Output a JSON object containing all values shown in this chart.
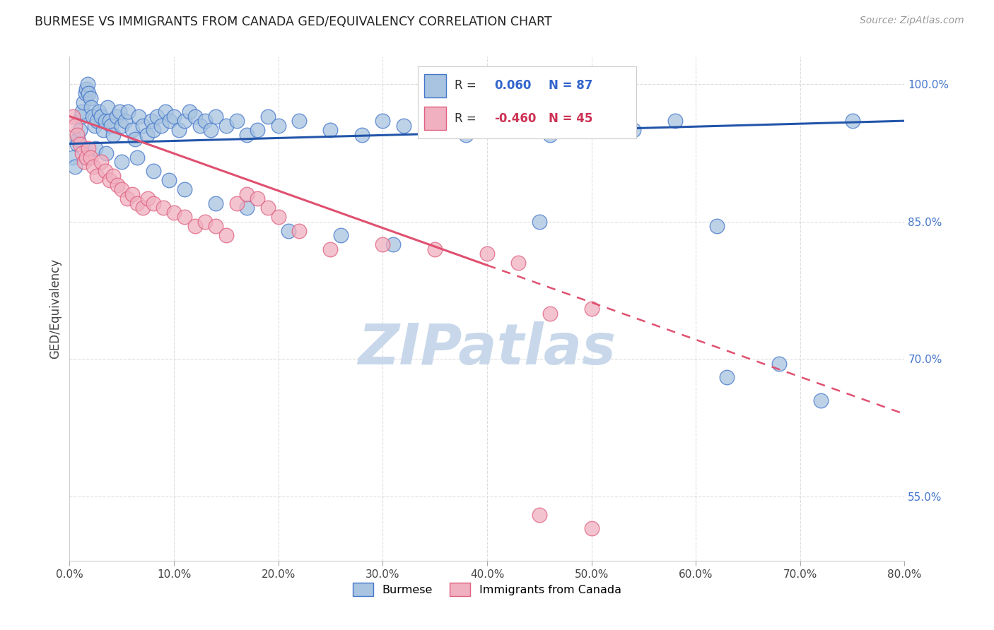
{
  "title": "BURMESE VS IMMIGRANTS FROM CANADA GED/EQUIVALENCY CORRELATION CHART",
  "source": "Source: ZipAtlas.com",
  "xlabel_ticks": [
    0.0,
    10.0,
    20.0,
    30.0,
    40.0,
    50.0,
    60.0,
    70.0,
    80.0
  ],
  "ylabel_right_ticks": [
    55.0,
    70.0,
    85.0,
    100.0
  ],
  "ylabel_label": "GED/Equivalency",
  "xlim": [
    0.0,
    80.0
  ],
  "ylim": [
    48.0,
    103.0
  ],
  "blue_R": 0.06,
  "blue_N": 87,
  "pink_R": -0.46,
  "pink_N": 45,
  "blue_color": "#a8c4e0",
  "pink_color": "#f0b0c0",
  "blue_edge_color": "#4477cc",
  "pink_edge_color": "#e06080",
  "blue_line_color": "#2255aa",
  "pink_line_color": "#e05070",
  "legend_blue_label": "Burmese",
  "legend_pink_label": "Immigrants from Canada",
  "blue_line_y0": 93.5,
  "blue_line_y1": 96.0,
  "pink_line_y0": 96.5,
  "pink_line_y1": 64.0,
  "pink_solid_end_x": 40.0,
  "blue_scatter_x": [
    0.3,
    0.5,
    0.7,
    0.8,
    1.0,
    1.1,
    1.2,
    1.3,
    1.5,
    1.6,
    1.7,
    1.8,
    2.0,
    2.1,
    2.2,
    2.4,
    2.6,
    2.8,
    3.0,
    3.2,
    3.4,
    3.6,
    3.8,
    4.0,
    4.2,
    4.5,
    4.8,
    5.0,
    5.3,
    5.6,
    6.0,
    6.3,
    6.6,
    7.0,
    7.4,
    7.8,
    8.0,
    8.4,
    8.8,
    9.2,
    9.6,
    10.0,
    10.5,
    11.0,
    11.5,
    12.0,
    12.5,
    13.0,
    13.5,
    14.0,
    15.0,
    16.0,
    17.0,
    18.0,
    19.0,
    20.0,
    22.0,
    25.0,
    28.0,
    30.0,
    32.0,
    35.0,
    38.0,
    40.0,
    43.0,
    46.0,
    50.0,
    54.0,
    58.0,
    63.0,
    68.0,
    72.0,
    75.0,
    2.5,
    3.5,
    5.0,
    6.5,
    8.0,
    9.5,
    11.0,
    14.0,
    17.0,
    21.0,
    26.0,
    31.0,
    45.0,
    62.0
  ],
  "blue_scatter_y": [
    92.0,
    91.0,
    93.5,
    94.0,
    95.0,
    96.5,
    97.0,
    98.0,
    99.0,
    99.5,
    100.0,
    99.0,
    98.5,
    97.5,
    96.5,
    95.5,
    96.0,
    97.0,
    96.5,
    95.0,
    96.0,
    97.5,
    96.0,
    95.5,
    94.5,
    96.5,
    97.0,
    95.5,
    96.0,
    97.0,
    95.0,
    94.0,
    96.5,
    95.5,
    94.5,
    96.0,
    95.0,
    96.5,
    95.5,
    97.0,
    96.0,
    96.5,
    95.0,
    96.0,
    97.0,
    96.5,
    95.5,
    96.0,
    95.0,
    96.5,
    95.5,
    96.0,
    94.5,
    95.0,
    96.5,
    95.5,
    96.0,
    95.0,
    94.5,
    96.0,
    95.5,
    95.0,
    94.5,
    96.0,
    95.5,
    94.5,
    96.5,
    95.0,
    96.0,
    68.0,
    69.5,
    65.5,
    96.0,
    93.0,
    92.5,
    91.5,
    92.0,
    90.5,
    89.5,
    88.5,
    87.0,
    86.5,
    84.0,
    83.5,
    82.5,
    85.0,
    84.5
  ],
  "pink_scatter_x": [
    0.3,
    0.5,
    0.7,
    1.0,
    1.2,
    1.4,
    1.6,
    1.8,
    2.0,
    2.3,
    2.6,
    3.0,
    3.4,
    3.8,
    4.2,
    4.6,
    5.0,
    5.5,
    6.0,
    6.5,
    7.0,
    7.5,
    8.0,
    9.0,
    10.0,
    11.0,
    12.0,
    13.0,
    14.0,
    15.0,
    16.0,
    17.0,
    18.0,
    19.0,
    20.0,
    22.0,
    25.0,
    30.0,
    35.0,
    40.0,
    43.0,
    46.0,
    50.0,
    45.0,
    50.0
  ],
  "pink_scatter_y": [
    96.5,
    95.5,
    94.5,
    93.5,
    92.5,
    91.5,
    92.0,
    93.0,
    92.0,
    91.0,
    90.0,
    91.5,
    90.5,
    89.5,
    90.0,
    89.0,
    88.5,
    87.5,
    88.0,
    87.0,
    86.5,
    87.5,
    87.0,
    86.5,
    86.0,
    85.5,
    84.5,
    85.0,
    84.5,
    83.5,
    87.0,
    88.0,
    87.5,
    86.5,
    85.5,
    84.0,
    82.0,
    82.5,
    82.0,
    81.5,
    80.5,
    75.0,
    75.5,
    53.0,
    51.5
  ],
  "watermark_text": "ZIPatlas",
  "watermark_color": "#c8d8ea",
  "bg_color": "#ffffff",
  "grid_color": "#dddddd",
  "grid_style": "--"
}
